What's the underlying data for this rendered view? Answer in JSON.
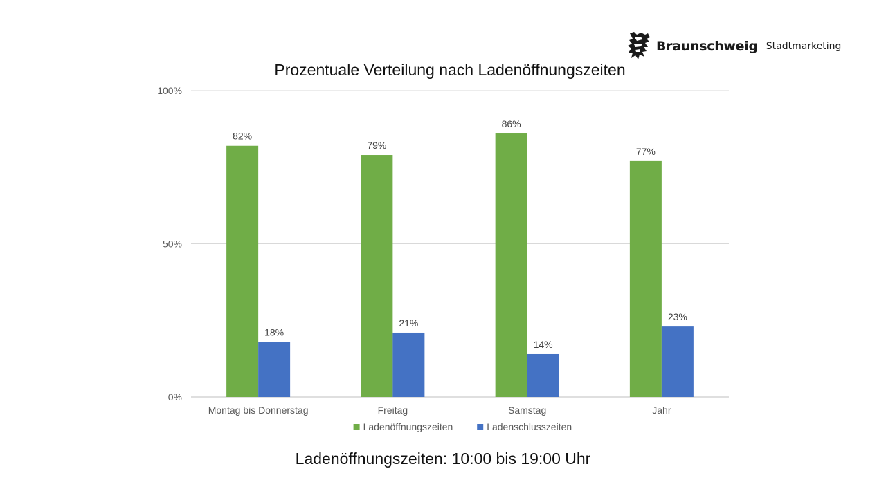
{
  "brand": {
    "name": "Braunschweig",
    "sub": "Stadtmarketing"
  },
  "footnote": "Ladenöffnungszeiten: 10:00 bis 19:00 Uhr",
  "chart_data": {
    "type": "bar",
    "title": "Prozentuale Verteilung nach Ladenöffnungszeiten",
    "categories": [
      "Montag bis Donnerstag",
      "Freitag",
      "Samstag",
      "Jahr"
    ],
    "series": [
      {
        "name": "Ladenöffnungszeiten",
        "color": "#70AD47",
        "values": [
          82,
          79,
          86,
          77
        ],
        "labels": [
          "82%",
          "79%",
          "86%",
          "77%"
        ]
      },
      {
        "name": "Ladenschlusszeiten",
        "color": "#4472C4",
        "values": [
          18,
          21,
          14,
          23
        ],
        "labels": [
          "18%",
          "21%",
          "14%",
          "23%"
        ]
      }
    ],
    "ylim": [
      0,
      100
    ],
    "yticks": [
      "0%",
      "50%",
      "100%"
    ],
    "grid": true,
    "legend": "bottom"
  }
}
